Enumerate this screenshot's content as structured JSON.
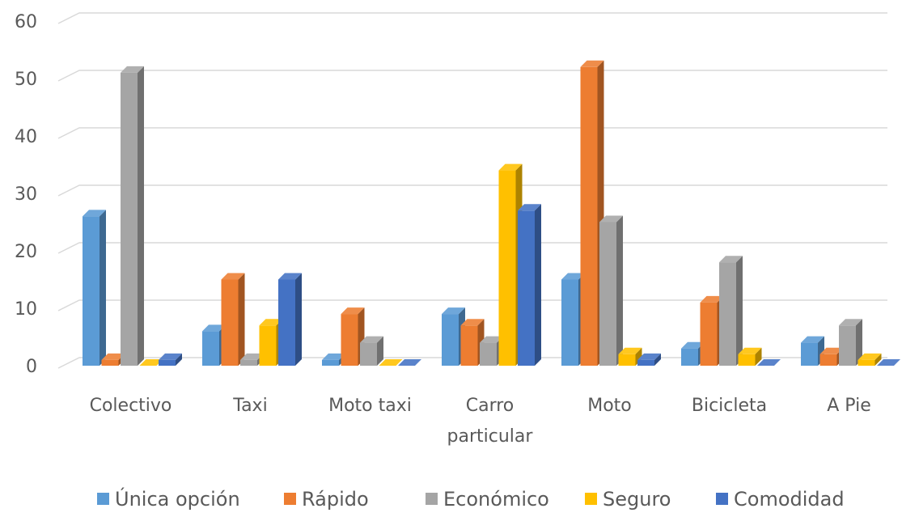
{
  "chart_data": {
    "type": "bar",
    "style": "3d-clustered-column",
    "categories": [
      [
        "Colectivo"
      ],
      [
        "Taxi"
      ],
      [
        "Moto taxi"
      ],
      [
        "Carro",
        "particular"
      ],
      [
        "Moto"
      ],
      [
        "Bicicleta"
      ],
      [
        "A Pie"
      ]
    ],
    "series": [
      {
        "name": "Única opción",
        "color": "#5b9bd5",
        "values": [
          26,
          6,
          1,
          9,
          15,
          3,
          4
        ]
      },
      {
        "name": "Rápido",
        "color": "#ed7d31",
        "values": [
          1,
          15,
          9,
          7,
          52,
          11,
          2
        ]
      },
      {
        "name": "Económico",
        "color": "#a5a5a5",
        "values": [
          51,
          1,
          4,
          4,
          25,
          18,
          7
        ]
      },
      {
        "name": "Seguro",
        "color": "#ffc000",
        "values": [
          0,
          7,
          0,
          34,
          2,
          2,
          1
        ]
      },
      {
        "name": "Comodidad",
        "color": "#4472c4",
        "values": [
          1,
          15,
          0,
          27,
          1,
          0,
          0
        ]
      }
    ],
    "yticks": [
      "0",
      "10",
      "20",
      "30",
      "40",
      "50",
      "60"
    ],
    "ylim": [
      0,
      60
    ],
    "grid": true,
    "legend": "bottom"
  }
}
